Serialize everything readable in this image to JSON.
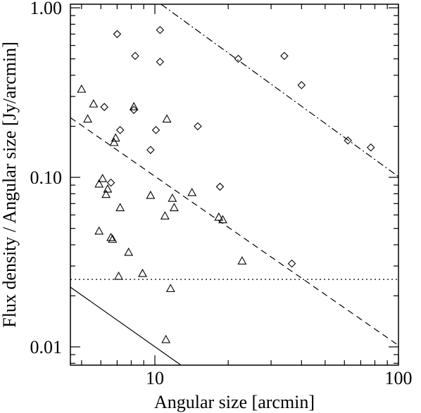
{
  "chart_data": {
    "type": "scatter",
    "title": "",
    "xlabel": "Angular size [arcmin]",
    "ylabel": "Flux density / Angular size [Jy/arcmin]",
    "xscale": "log",
    "yscale": "log",
    "xlim": [
      4.5,
      100
    ],
    "ylim": [
      0.0078,
      1.05
    ],
    "xticks": [
      {
        "value": 10,
        "label": "10"
      },
      {
        "value": 100,
        "label": "100"
      }
    ],
    "yticks": [
      {
        "value": 0.01,
        "label": "0.01"
      },
      {
        "value": 0.1,
        "label": "0.10"
      },
      {
        "value": 1.0,
        "label": "1.00"
      }
    ],
    "grid": false,
    "series": [
      {
        "marker": "triangle",
        "points": [
          [
            5.0,
            0.33
          ],
          [
            5.3,
            0.22
          ],
          [
            5.6,
            0.27
          ],
          [
            5.9,
            0.091
          ],
          [
            5.9,
            0.048
          ],
          [
            6.1,
            0.098
          ],
          [
            6.3,
            0.079
          ],
          [
            6.4,
            0.085
          ],
          [
            6.6,
            0.044
          ],
          [
            6.7,
            0.043
          ],
          [
            6.8,
            0.16
          ],
          [
            6.9,
            0.17
          ],
          [
            7.1,
            0.026
          ],
          [
            7.2,
            0.066
          ],
          [
            7.8,
            0.036
          ],
          [
            8.2,
            0.26
          ],
          [
            8.9,
            0.027
          ],
          [
            9.6,
            0.078
          ],
          [
            11.0,
            0.059
          ],
          [
            11.2,
            0.22
          ],
          [
            11.1,
            0.011
          ],
          [
            11.6,
            0.022
          ],
          [
            11.8,
            0.075
          ],
          [
            12.0,
            0.066
          ],
          [
            14.2,
            0.081
          ],
          [
            18.3,
            0.058
          ],
          [
            19.0,
            0.056
          ],
          [
            22.8,
            0.032
          ]
        ]
      },
      {
        "marker": "diamond",
        "points": [
          [
            7.0,
            0.7
          ],
          [
            7.2,
            0.19
          ],
          [
            6.2,
            0.26
          ],
          [
            6.6,
            0.093
          ],
          [
            8.3,
            0.52
          ],
          [
            8.2,
            0.25
          ],
          [
            9.6,
            0.145
          ],
          [
            10.1,
            0.19
          ],
          [
            10.5,
            0.74
          ],
          [
            10.5,
            0.48
          ],
          [
            15.0,
            0.2
          ],
          [
            18.5,
            0.088
          ],
          [
            22.0,
            0.5
          ],
          [
            34.0,
            0.52
          ],
          [
            36.5,
            0.031
          ],
          [
            40.0,
            0.35
          ],
          [
            62.0,
            0.165
          ],
          [
            77.0,
            0.15
          ]
        ]
      }
    ],
    "lines": [
      {
        "style": "solid",
        "points": [
          [
            4.5,
            0.0225
          ],
          [
            12.8,
            0.0078
          ]
        ]
      },
      {
        "style": "dashed",
        "points": [
          [
            4.5,
            0.225
          ],
          [
            100,
            0.0102
          ]
        ]
      },
      {
        "style": "dotted",
        "points": [
          [
            4.5,
            0.025
          ],
          [
            100,
            0.025
          ]
        ]
      },
      {
        "style": "dashdot",
        "points": [
          [
            10.6,
            1.05
          ],
          [
            100,
            0.101
          ]
        ]
      }
    ]
  }
}
